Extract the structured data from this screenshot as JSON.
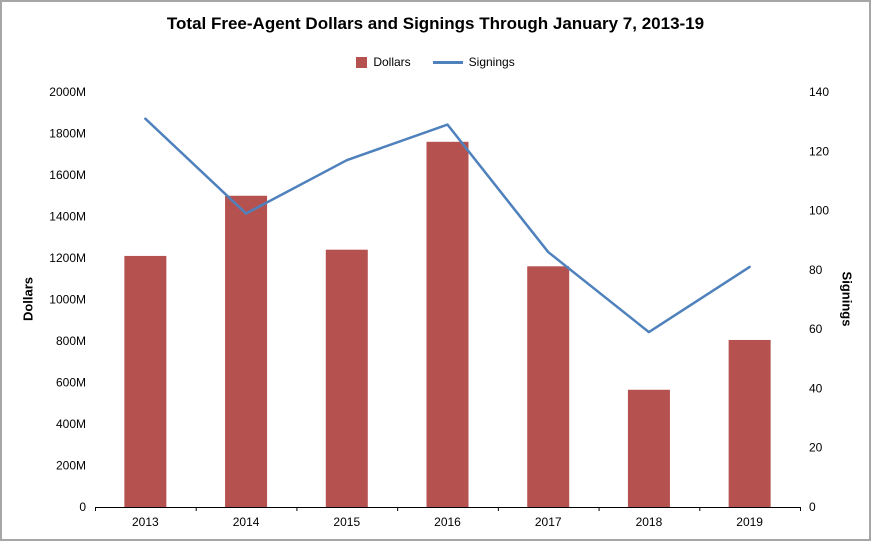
{
  "chart_data": {
    "type": "bar",
    "subtype": "combo-bar-line",
    "title": "Total Free-Agent Dollars and Signings Through January 7, 2013-19",
    "categories": [
      "2013",
      "2014",
      "2015",
      "2016",
      "2017",
      "2018",
      "2019"
    ],
    "series": [
      {
        "name": "Dollars",
        "type": "bar",
        "axis": "left",
        "color": "#b5524f",
        "values": [
          1210,
          1500,
          1240,
          1760,
          1160,
          565,
          805
        ]
      },
      {
        "name": "Signings",
        "type": "line",
        "axis": "right",
        "color": "#4f81bd",
        "values": [
          131,
          99,
          117,
          129,
          86,
          59,
          81
        ]
      }
    ],
    "ylabel_left": "Dollars",
    "ylabel_right": "Signings",
    "left_axis": {
      "min": 0,
      "max": 2000,
      "step": 200,
      "suffix": "M",
      "zero_label": "0"
    },
    "right_axis": {
      "min": 0,
      "max": 140,
      "step": 20
    },
    "grid": false,
    "legend_position": "top"
  }
}
